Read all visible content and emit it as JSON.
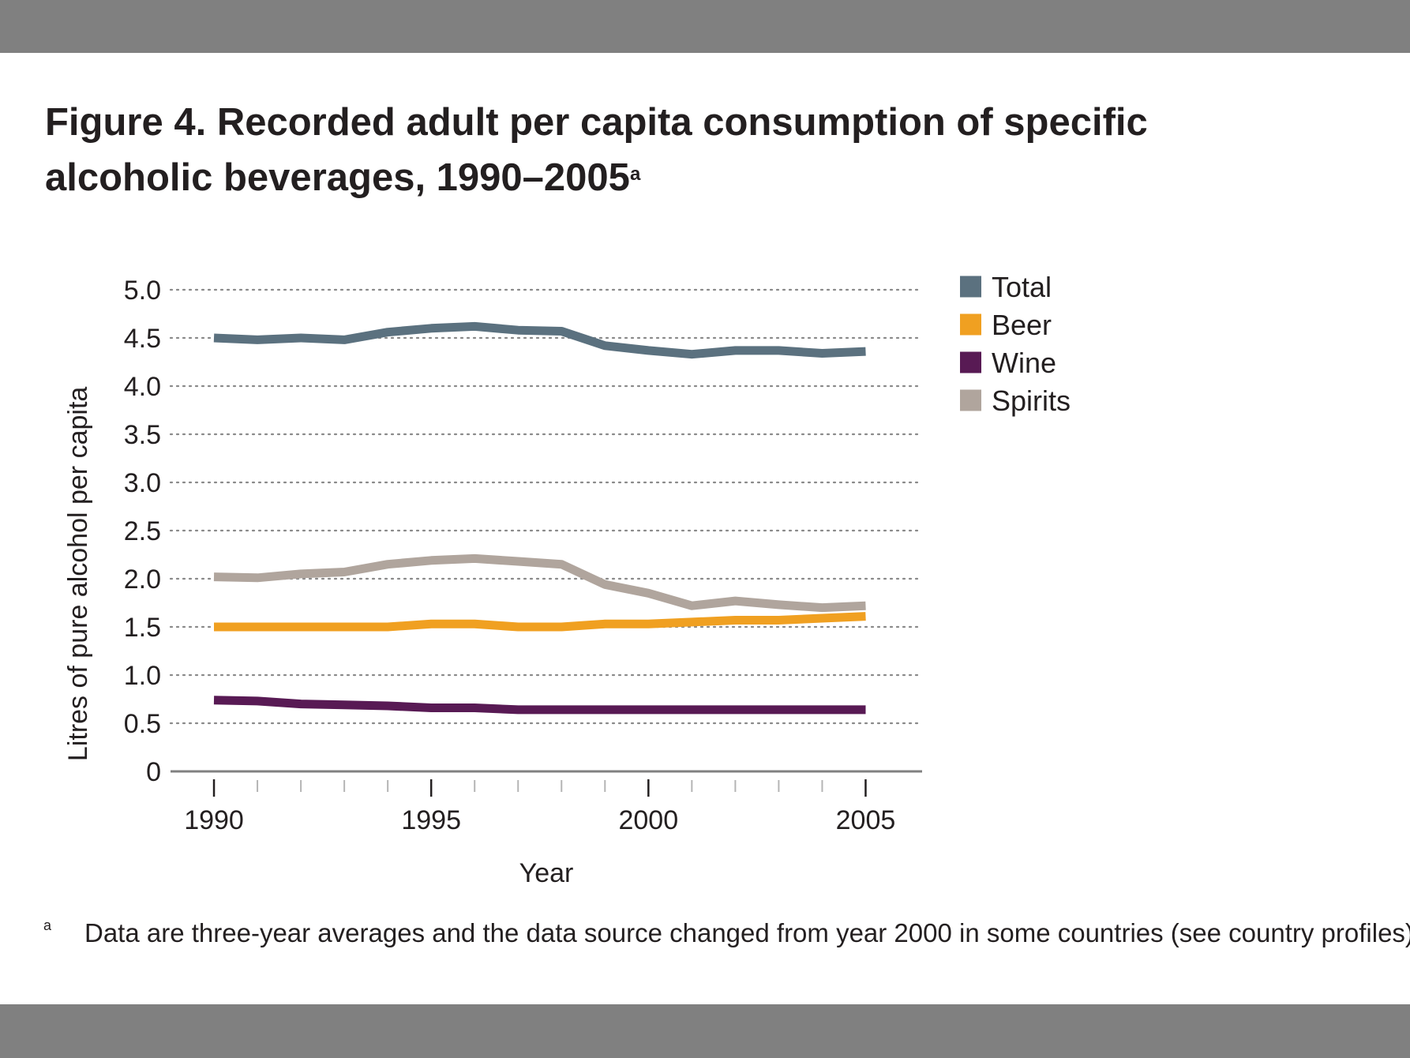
{
  "figure": {
    "title_prefix": "Figure 4.",
    "title_text": "Recorded adult per capita consumption of specific alcoholic beverages, 1990–2005",
    "title_superscript": "a",
    "footnote_marker": "a",
    "footnote_text": "Data are three-year averages and the data source changed from year 2000 in some countries (see country profiles)."
  },
  "chart_data": {
    "type": "line",
    "title": "Recorded adult per capita consumption of specific alcoholic beverages, 1990–2005",
    "xlabel": "Year",
    "ylabel": "Litres of pure alcohol per capita",
    "x": [
      1990,
      1991,
      1992,
      1993,
      1994,
      1995,
      1996,
      1997,
      1998,
      1999,
      2000,
      2001,
      2002,
      2003,
      2004,
      2005
    ],
    "xlim": [
      1989,
      2006.3
    ],
    "ylim": [
      0,
      5.0
    ],
    "x_tick_labels": [
      1990,
      1995,
      2000,
      2005
    ],
    "y_ticks": [
      0,
      0.5,
      1.0,
      1.5,
      2.0,
      2.5,
      3.0,
      3.5,
      4.0,
      4.5,
      5.0
    ],
    "y_tick_labels": [
      "0",
      "0.5",
      "1.0",
      "1.5",
      "2.0",
      "2.5",
      "3.0",
      "3.5",
      "4.0",
      "4.5",
      "5.0"
    ],
    "grid": "horizontal dotted",
    "legend_position": "top-right",
    "series": [
      {
        "name": "Total",
        "color": "#5b717f",
        "values": [
          4.5,
          4.48,
          4.5,
          4.48,
          4.56,
          4.6,
          4.62,
          4.58,
          4.57,
          4.42,
          4.37,
          4.33,
          4.37,
          4.37,
          4.34,
          4.36
        ]
      },
      {
        "name": "Beer",
        "color": "#f0a021",
        "values": [
          1.5,
          1.5,
          1.5,
          1.5,
          1.5,
          1.53,
          1.53,
          1.5,
          1.5,
          1.53,
          1.53,
          1.55,
          1.57,
          1.57,
          1.59,
          1.61
        ]
      },
      {
        "name": "Wine",
        "color": "#581a54",
        "values": [
          0.74,
          0.73,
          0.7,
          0.69,
          0.68,
          0.66,
          0.66,
          0.64,
          0.64,
          0.64,
          0.64,
          0.64,
          0.64,
          0.64,
          0.64,
          0.64
        ]
      },
      {
        "name": "Spirits",
        "color": "#b0a59d",
        "values": [
          2.02,
          2.01,
          2.05,
          2.07,
          2.15,
          2.19,
          2.21,
          2.18,
          2.15,
          1.94,
          1.85,
          1.72,
          1.77,
          1.73,
          1.7,
          1.72
        ]
      }
    ]
  }
}
